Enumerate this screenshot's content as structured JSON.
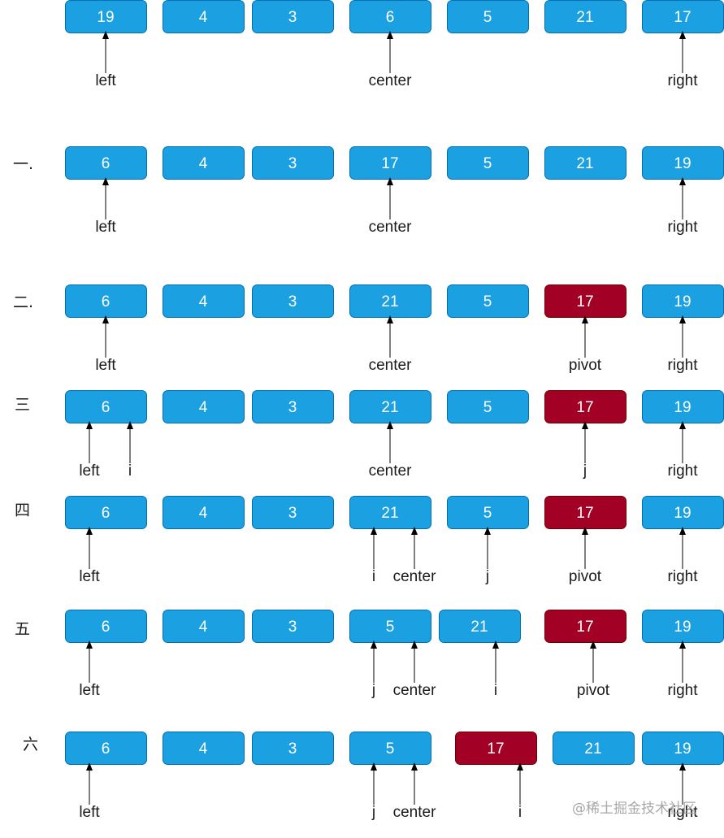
{
  "colors": {
    "box_fill": "#1ba1e2",
    "box_stroke": "#006eaf",
    "pivot_fill": "#a20025",
    "pivot_stroke": "#6f0000",
    "arrow": "#000000",
    "text": "#1a1a1a",
    "box_text": "#ffffff",
    "watermark": "#a8a8a8"
  },
  "rows": [
    {
      "step": "",
      "boxes": [
        {
          "value": "19",
          "pivot": false
        },
        {
          "value": "4",
          "pivot": false
        },
        {
          "value": "3",
          "pivot": false
        },
        {
          "value": "6",
          "pivot": false
        },
        {
          "value": "5",
          "pivot": false
        },
        {
          "value": "21",
          "pivot": false
        },
        {
          "value": "17",
          "pivot": false
        }
      ],
      "pointers": [
        {
          "label": "left",
          "target": 0,
          "slot": "mid"
        },
        {
          "label": "center",
          "target": 3,
          "slot": "mid"
        },
        {
          "label": "right",
          "target": 6,
          "slot": "mid"
        }
      ]
    },
    {
      "step": "一.",
      "boxes": [
        {
          "value": "6",
          "pivot": false
        },
        {
          "value": "4",
          "pivot": false
        },
        {
          "value": "3",
          "pivot": false
        },
        {
          "value": "17",
          "pivot": false
        },
        {
          "value": "5",
          "pivot": false
        },
        {
          "value": "21",
          "pivot": false
        },
        {
          "value": "19",
          "pivot": false
        }
      ],
      "pointers": [
        {
          "label": "left",
          "target": 0,
          "slot": "mid"
        },
        {
          "label": "center",
          "target": 3,
          "slot": "mid"
        },
        {
          "label": "right",
          "target": 6,
          "slot": "mid"
        }
      ]
    },
    {
      "step": "二.",
      "boxes": [
        {
          "value": "6",
          "pivot": false
        },
        {
          "value": "4",
          "pivot": false
        },
        {
          "value": "3",
          "pivot": false
        },
        {
          "value": "21",
          "pivot": false
        },
        {
          "value": "5",
          "pivot": false
        },
        {
          "value": "17",
          "pivot": true
        },
        {
          "value": "19",
          "pivot": false
        }
      ],
      "pointers": [
        {
          "label": "left",
          "target": 0,
          "slot": "mid"
        },
        {
          "label": "center",
          "target": 3,
          "slot": "mid"
        },
        {
          "label": "pivot",
          "target": 5,
          "slot": "mid"
        },
        {
          "label": "right",
          "target": 6,
          "slot": "mid"
        }
      ]
    },
    {
      "step": "三",
      "boxes": [
        {
          "value": "6",
          "pivot": false
        },
        {
          "value": "4",
          "pivot": false
        },
        {
          "value": "3",
          "pivot": false
        },
        {
          "value": "21",
          "pivot": false
        },
        {
          "value": "5",
          "pivot": false
        },
        {
          "value": "17",
          "pivot": true
        },
        {
          "value": "19",
          "pivot": false
        }
      ],
      "pointers": [
        {
          "label": "left",
          "target": 0,
          "slot": "left"
        },
        {
          "label": "i",
          "target": 0,
          "slot": "right"
        },
        {
          "label": "center",
          "target": 3,
          "slot": "mid"
        },
        {
          "label": "j",
          "target": 5,
          "slot": "mid"
        },
        {
          "label": "right",
          "target": 6,
          "slot": "mid"
        }
      ]
    },
    {
      "step": "四",
      "boxes": [
        {
          "value": "6",
          "pivot": false
        },
        {
          "value": "4",
          "pivot": false
        },
        {
          "value": "3",
          "pivot": false
        },
        {
          "value": "21",
          "pivot": false
        },
        {
          "value": "5",
          "pivot": false
        },
        {
          "value": "17",
          "pivot": true
        },
        {
          "value": "19",
          "pivot": false
        }
      ],
      "pointers": [
        {
          "label": "left",
          "target": 0,
          "slot": "left"
        },
        {
          "label": "i",
          "target": 3,
          "slot": "left"
        },
        {
          "label": "center",
          "target": 3,
          "slot": "right"
        },
        {
          "label": "j",
          "target": 4,
          "slot": "mid"
        },
        {
          "label": "pivot",
          "target": 5,
          "slot": "mid"
        },
        {
          "label": "right",
          "target": 6,
          "slot": "mid"
        }
      ]
    },
    {
      "step": "五",
      "boxes": [
        {
          "value": "6",
          "pivot": false
        },
        {
          "value": "4",
          "pivot": false
        },
        {
          "value": "3",
          "pivot": false
        },
        {
          "value": "5",
          "pivot": false
        },
        {
          "value": "21",
          "pivot": false
        },
        {
          "value": "17",
          "pivot": true
        },
        {
          "value": "19",
          "pivot": false
        }
      ],
      "pointers": [
        {
          "label": "left",
          "target": 0,
          "slot": "left"
        },
        {
          "label": "j",
          "target": 3,
          "slot": "left"
        },
        {
          "label": "center",
          "target": 3,
          "slot": "right"
        },
        {
          "label": "i",
          "target": 4,
          "slot": "right"
        },
        {
          "label": "pivot",
          "target": 5,
          "slot": "right"
        },
        {
          "label": "right",
          "target": 6,
          "slot": "mid"
        }
      ]
    },
    {
      "step": "六",
      "boxes": [
        {
          "value": "6",
          "pivot": false
        },
        {
          "value": "4",
          "pivot": false
        },
        {
          "value": "3",
          "pivot": false
        },
        {
          "value": "5",
          "pivot": false
        },
        {
          "value": "17",
          "pivot": true
        },
        {
          "value": "21",
          "pivot": false
        },
        {
          "value": "19",
          "pivot": false
        }
      ],
      "pointers": [
        {
          "label": "left",
          "target": 0,
          "slot": "left"
        },
        {
          "label": "j",
          "target": 3,
          "slot": "left"
        },
        {
          "label": "center",
          "target": 3,
          "slot": "right"
        },
        {
          "label": "i",
          "target": 4,
          "slot": "right"
        },
        {
          "label": "right",
          "target": 6,
          "slot": "mid"
        }
      ]
    }
  ],
  "watermark": "@稀土掘金技术社区"
}
